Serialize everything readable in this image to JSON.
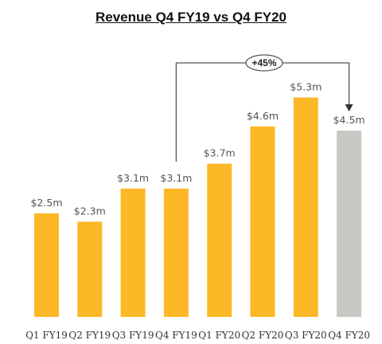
{
  "chart_data": {
    "type": "bar",
    "title": "Revenue Q4 FY19 vs Q4 FY20",
    "categories": [
      "Q1 FY19",
      "Q2 FY19",
      "Q3 FY19",
      "Q4 FY19",
      "Q1 FY20",
      "Q2 FY20",
      "Q3 FY20",
      "Q4 FY20"
    ],
    "values": [
      2.5,
      2.3,
      3.1,
      3.1,
      3.7,
      4.6,
      5.3,
      4.5
    ],
    "data_labels": [
      "$2.5m",
      "$2.3m",
      "$3.1m",
      "$3.1m",
      "$3.7m",
      "$4.6m",
      "$5.3m",
      "$4.5m"
    ],
    "bar_colors": [
      "#FDB827",
      "#FDB827",
      "#FDB827",
      "#FDB827",
      "#FDB827",
      "#FDB827",
      "#FDB827",
      "#C9C8C3"
    ],
    "ylim": [
      0,
      6
    ],
    "grid": false,
    "annotation": {
      "label": "+45%",
      "from_category": "Q4 FY19",
      "to_category": "Q4 FY20"
    }
  }
}
